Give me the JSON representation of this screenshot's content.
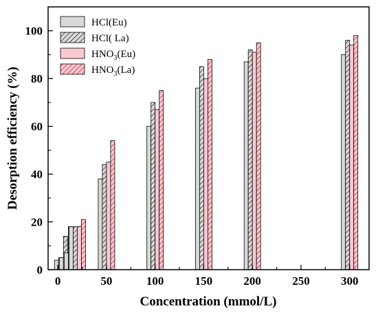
{
  "chart_data": {
    "type": "bar",
    "xlabel": "Concentration (mmol/L)",
    "ylabel": "Desorption efficiency (%)",
    "xlim": [
      -10,
      320
    ],
    "ylim": [
      0,
      110
    ],
    "x_ticks": [
      0,
      50,
      100,
      150,
      200,
      250,
      300
    ],
    "y_ticks": [
      0,
      20,
      40,
      60,
      80,
      100
    ],
    "x": [
      5,
      10,
      15,
      20,
      50,
      100,
      150,
      200,
      300
    ],
    "legend_position": "top-left",
    "series": [
      {
        "name": "HCl(Eu)",
        "name_main": "HCl(Eu)",
        "name_sub": "",
        "name_tail": "",
        "fill": "#d9d9d9",
        "pattern": "solid",
        "values": [
          4,
          5,
          7,
          18,
          38,
          60,
          76,
          87,
          90
        ]
      },
      {
        "name": "HCl( La)",
        "name_main": "HCl( La)",
        "name_sub": "",
        "name_tail": "",
        "fill": "#d9d9d9",
        "pattern": "hatch",
        "values": [
          5,
          14,
          18,
          18,
          44,
          70,
          85,
          92,
          96
        ]
      },
      {
        "name": "HNO3(Eu)",
        "name_main": "HNO",
        "name_sub": "3",
        "name_tail": "(Eu)",
        "fill": "#f9c9cf",
        "pattern": "solid",
        "values": [
          4,
          6,
          8,
          18,
          45,
          67,
          80,
          91,
          94
        ]
      },
      {
        "name": "HNO3(La)",
        "name_main": "HNO",
        "name_sub": "3",
        "name_tail": "(La)",
        "fill": "#f9c9cf",
        "pattern": "hatch",
        "values": [
          4,
          7,
          18,
          21,
          54,
          75,
          88,
          95,
          98
        ]
      }
    ]
  }
}
